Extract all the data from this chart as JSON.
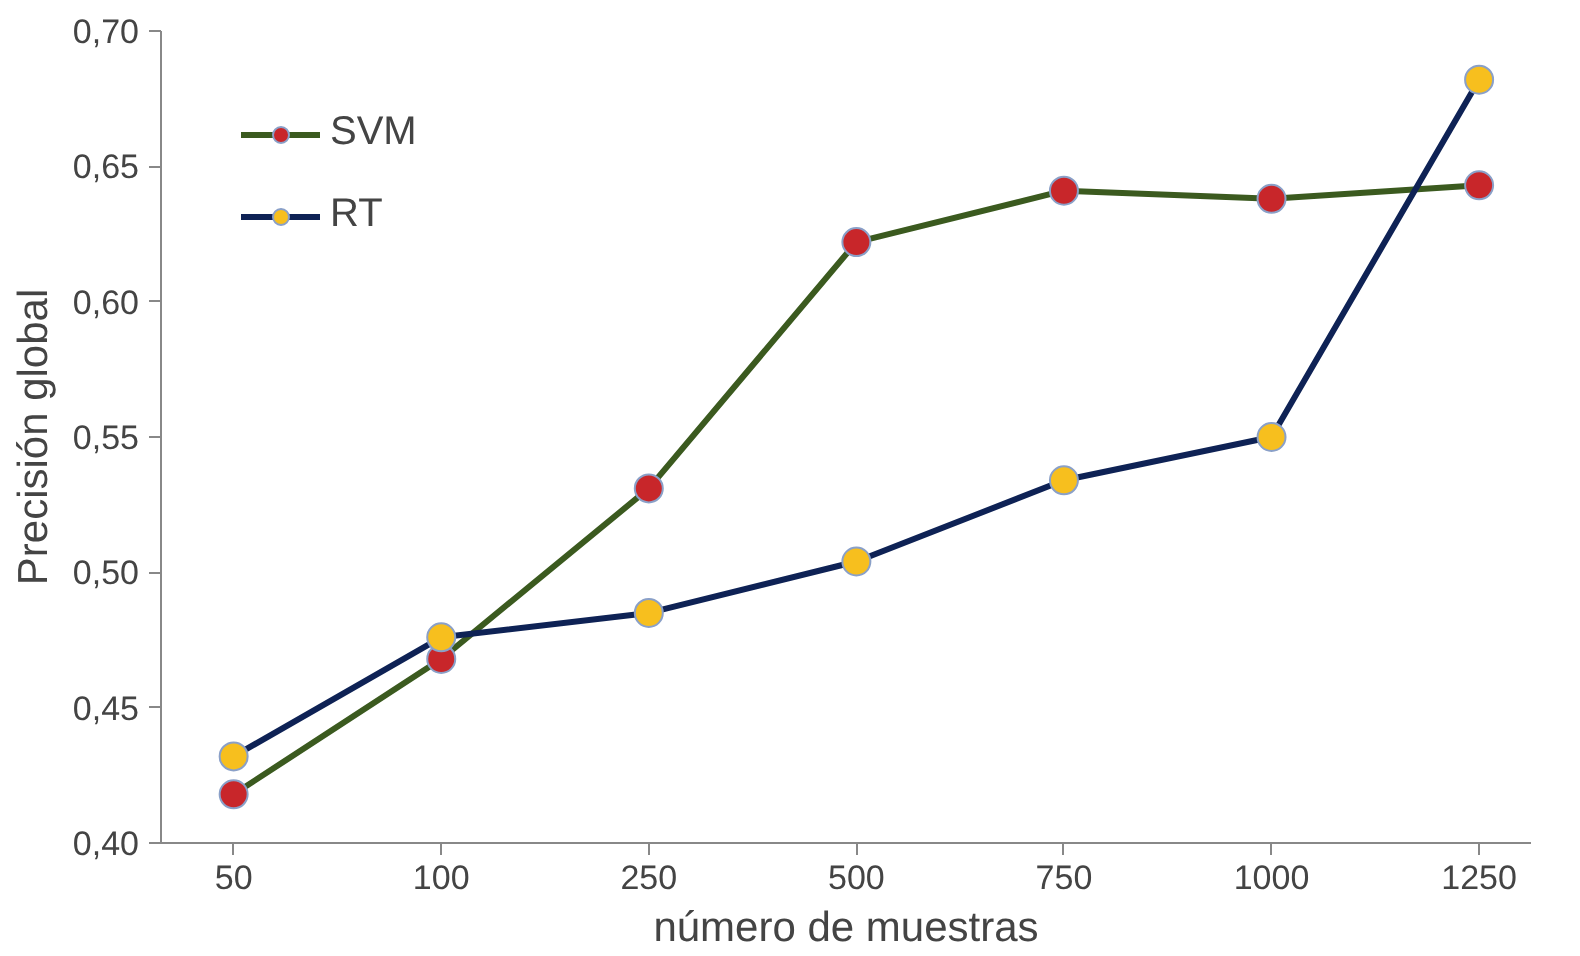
{
  "chart_data": {
    "type": "line",
    "xlabel": "número de muestras",
    "ylabel": "Precisión global",
    "categories": [
      "50",
      "100",
      "250",
      "500",
      "750",
      "1000",
      "1250"
    ],
    "ylim": [
      0.4,
      0.7
    ],
    "yticks": [
      {
        "value": 0.4,
        "label": "0,40"
      },
      {
        "value": 0.45,
        "label": "0,45"
      },
      {
        "value": 0.5,
        "label": "0,50"
      },
      {
        "value": 0.55,
        "label": "0,55"
      },
      {
        "value": 0.6,
        "label": "0,60"
      },
      {
        "value": 0.65,
        "label": "0,65"
      },
      {
        "value": 0.7,
        "label": "0,70"
      }
    ],
    "grid": false,
    "legend": "top left",
    "marker": "circle",
    "line_style": "solid",
    "series": [
      {
        "name": "SVM",
        "color": "#3b5a1f",
        "colors": [
          "#c8262a",
          "#c8262a",
          "#c8262a",
          "#c8262a",
          "#c8262a",
          "#c8262a",
          "#c8262a"
        ],
        "values": [
          0.418,
          0.468,
          0.531,
          0.622,
          0.641,
          0.638,
          0.643
        ]
      },
      {
        "name": "RT",
        "color": "#0e2255",
        "colors": [
          "#f7bf1e",
          "#f7bf1e",
          "#f7bf1e",
          "#f7bf1e",
          "#f7bf1e",
          "#f7bf1e",
          "#f7bf1e"
        ],
        "values": [
          0.432,
          0.476,
          0.485,
          0.504,
          0.534,
          0.55,
          0.682
        ]
      }
    ]
  }
}
